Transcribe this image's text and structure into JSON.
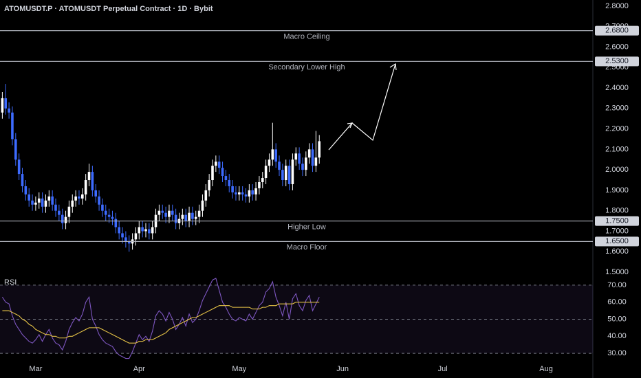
{
  "chart_data": [
    {
      "type": "candlestick",
      "title": "ATOMUSDT.P · ATOMUSDT Perpetual Contract · 1D · Bybit",
      "up_color": "#ffffff",
      "down_color": "#3d6bff",
      "x": [
        -10,
        -9,
        -8,
        -7,
        -6,
        -5,
        -4,
        -3,
        -2,
        -1,
        0,
        1,
        2,
        3,
        4,
        5,
        6,
        7,
        8,
        9,
        10,
        11,
        12,
        13,
        14,
        15,
        16,
        17,
        18,
        19,
        20,
        21,
        22,
        23,
        24,
        25,
        26,
        27,
        28,
        29,
        30,
        31,
        32,
        33,
        34,
        35,
        36,
        37,
        38,
        39,
        40,
        41,
        42,
        43,
        44,
        45,
        46,
        47,
        48,
        49,
        50,
        51,
        52,
        53,
        54,
        55,
        56,
        57,
        58,
        59,
        60,
        61,
        62,
        63,
        64,
        65,
        66,
        67,
        68,
        69,
        70,
        71,
        72,
        73,
        74,
        75,
        76,
        77,
        78,
        79,
        80,
        81,
        82,
        83,
        84,
        85
      ],
      "open": [
        2.28,
        2.35,
        2.3,
        2.28,
        2.15,
        2.05,
        1.98,
        1.92,
        1.88,
        1.85,
        1.83,
        1.84,
        1.86,
        1.82,
        1.85,
        1.87,
        1.83,
        1.8,
        1.78,
        1.74,
        1.77,
        1.82,
        1.85,
        1.87,
        1.86,
        1.88,
        1.95,
        1.99,
        1.9,
        1.87,
        1.83,
        1.8,
        1.78,
        1.77,
        1.76,
        1.72,
        1.69,
        1.67,
        1.65,
        1.64,
        1.66,
        1.69,
        1.72,
        1.7,
        1.71,
        1.69,
        1.72,
        1.78,
        1.8,
        1.79,
        1.77,
        1.8,
        1.78,
        1.74,
        1.76,
        1.78,
        1.75,
        1.79,
        1.76,
        1.77,
        1.8,
        1.85,
        1.9,
        1.95,
        2.02,
        2.04,
        2.01,
        1.97,
        1.95,
        1.92,
        1.89,
        1.88,
        1.89,
        1.88,
        1.87,
        1.9,
        1.88,
        1.91,
        1.94,
        1.96,
        2.02,
        2.05,
        2.1,
        2.04,
        2.0,
        1.95,
        2.02,
        1.93,
        2.05,
        2.08,
        2.03,
        2.0,
        2.06,
        2.1,
        2.02,
        2.06
      ],
      "high": [
        2.38,
        2.42,
        2.33,
        2.31,
        2.18,
        2.08,
        2.01,
        1.95,
        1.91,
        1.88,
        1.87,
        1.89,
        1.89,
        1.88,
        1.9,
        1.9,
        1.86,
        1.83,
        1.81,
        1.8,
        1.85,
        1.88,
        1.9,
        1.9,
        1.91,
        1.98,
        2.03,
        2.02,
        1.93,
        1.9,
        1.86,
        1.83,
        1.81,
        1.8,
        1.79,
        1.75,
        1.72,
        1.7,
        1.68,
        1.69,
        1.72,
        1.75,
        1.75,
        1.74,
        1.74,
        1.75,
        1.81,
        1.83,
        1.83,
        1.82,
        1.83,
        1.83,
        1.81,
        1.79,
        1.81,
        1.81,
        1.82,
        1.82,
        1.8,
        1.83,
        1.88,
        1.93,
        1.98,
        2.05,
        2.07,
        2.07,
        2.04,
        2.0,
        1.98,
        1.95,
        1.92,
        1.92,
        1.92,
        1.91,
        1.93,
        1.93,
        1.94,
        1.97,
        1.99,
        2.05,
        2.08,
        2.23,
        2.13,
        2.07,
        2.03,
        2.05,
        2.05,
        2.08,
        2.11,
        2.11,
        2.06,
        2.09,
        2.13,
        2.13,
        2.19,
        2.17
      ],
      "low": [
        2.25,
        2.27,
        2.25,
        2.12,
        2.02,
        1.95,
        1.89,
        1.85,
        1.82,
        1.8,
        1.8,
        1.81,
        1.79,
        1.79,
        1.82,
        1.8,
        1.77,
        1.75,
        1.71,
        1.71,
        1.74,
        1.79,
        1.82,
        1.83,
        1.83,
        1.85,
        1.92,
        1.87,
        1.84,
        1.8,
        1.77,
        1.75,
        1.74,
        1.73,
        1.69,
        1.66,
        1.64,
        1.62,
        1.6,
        1.61,
        1.63,
        1.66,
        1.67,
        1.67,
        1.66,
        1.66,
        1.69,
        1.75,
        1.76,
        1.74,
        1.74,
        1.75,
        1.71,
        1.71,
        1.73,
        1.72,
        1.72,
        1.73,
        1.73,
        1.74,
        1.77,
        1.82,
        1.87,
        1.92,
        1.99,
        1.98,
        1.94,
        1.92,
        1.89,
        1.86,
        1.85,
        1.85,
        1.85,
        1.84,
        1.84,
        1.85,
        1.85,
        1.88,
        1.91,
        1.93,
        1.99,
        2.02,
        2.01,
        1.97,
        1.92,
        1.92,
        1.9,
        1.9,
        2.02,
        2.0,
        1.97,
        1.97,
        2.03,
        1.99,
        1.99,
        2.03
      ],
      "close": [
        2.35,
        2.3,
        2.28,
        2.15,
        2.05,
        1.98,
        1.92,
        1.88,
        1.85,
        1.83,
        1.84,
        1.86,
        1.82,
        1.85,
        1.87,
        1.83,
        1.8,
        1.78,
        1.74,
        1.77,
        1.82,
        1.85,
        1.87,
        1.86,
        1.88,
        1.95,
        1.99,
        1.9,
        1.87,
        1.83,
        1.8,
        1.78,
        1.77,
        1.76,
        1.72,
        1.69,
        1.67,
        1.65,
        1.64,
        1.66,
        1.69,
        1.72,
        1.7,
        1.71,
        1.69,
        1.72,
        1.78,
        1.8,
        1.79,
        1.77,
        1.8,
        1.78,
        1.74,
        1.76,
        1.78,
        1.75,
        1.79,
        1.76,
        1.77,
        1.8,
        1.85,
        1.9,
        1.95,
        2.02,
        2.04,
        2.01,
        1.97,
        1.95,
        1.92,
        1.89,
        1.88,
        1.89,
        1.88,
        1.87,
        1.9,
        1.88,
        1.91,
        1.94,
        1.96,
        2.02,
        2.05,
        2.1,
        2.04,
        2.0,
        1.95,
        2.02,
        1.93,
        2.05,
        2.08,
        2.03,
        2.0,
        2.06,
        2.1,
        2.02,
        2.06,
        2.14
      ],
      "xlim": [
        -10.7,
        167
      ],
      "ylim": [
        1.5,
        2.83
      ],
      "yticks": [
        {
          "value": 1.5,
          "label": "1.5000"
        },
        {
          "value": 1.6,
          "label": "1.6000"
        },
        {
          "value": 1.7,
          "label": "1.7000"
        },
        {
          "value": 1.8,
          "label": "1.8000"
        },
        {
          "value": 1.9,
          "label": "1.9000"
        },
        {
          "value": 2.0,
          "label": "2.0000"
        },
        {
          "value": 2.1,
          "label": "2.1000"
        },
        {
          "value": 2.2,
          "label": "2.2000"
        },
        {
          "value": 2.3,
          "label": "2.3000"
        },
        {
          "value": 2.4,
          "label": "2.4000"
        },
        {
          "value": 2.5,
          "label": "2.5000"
        },
        {
          "value": 2.6,
          "label": "2.6000"
        },
        {
          "value": 2.7,
          "label": "2.7000"
        },
        {
          "value": 2.8,
          "label": "2.8000"
        }
      ],
      "levels": [
        {
          "value": 2.68,
          "label": "2.6800",
          "name": "Macro Ceiling"
        },
        {
          "value": 2.53,
          "label": "2.5300",
          "name": "Secondary Lower High"
        },
        {
          "value": 1.75,
          "label": "1.7500",
          "name": "Higher Low"
        },
        {
          "value": 1.65,
          "label": "1.6500",
          "name": "Macro Floor"
        }
      ]
    },
    {
      "type": "line",
      "title": "RSI",
      "x": [
        -10,
        -9,
        -8,
        -7,
        -6,
        -5,
        -4,
        -3,
        -2,
        -1,
        0,
        1,
        2,
        3,
        4,
        5,
        6,
        7,
        8,
        9,
        10,
        11,
        12,
        13,
        14,
        15,
        16,
        17,
        18,
        19,
        20,
        21,
        22,
        23,
        24,
        25,
        26,
        27,
        28,
        29,
        30,
        31,
        32,
        33,
        34,
        35,
        36,
        37,
        38,
        39,
        40,
        41,
        42,
        43,
        44,
        45,
        46,
        47,
        48,
        49,
        50,
        51,
        52,
        53,
        54,
        55,
        56,
        57,
        58,
        59,
        60,
        61,
        62,
        63,
        64,
        65,
        66,
        67,
        68,
        69,
        70,
        71,
        72,
        73,
        74,
        75,
        76,
        77,
        78,
        79,
        80,
        81,
        82,
        83,
        84,
        85
      ],
      "series": [
        {
          "color": "#7e57c2",
          "values": [
            63,
            60,
            59,
            52,
            47,
            44,
            41,
            39,
            37,
            36,
            38,
            41,
            37,
            41,
            44,
            39,
            36,
            35,
            32,
            37,
            44,
            48,
            51,
            49,
            53,
            60,
            63,
            50,
            46,
            41,
            38,
            36,
            35,
            34,
            31,
            29,
            28,
            27,
            27,
            31,
            36,
            41,
            38,
            40,
            37,
            43,
            52,
            55,
            53,
            49,
            54,
            50,
            44,
            47,
            51,
            46,
            53,
            48,
            50,
            55,
            61,
            65,
            69,
            73,
            74,
            67,
            60,
            57,
            53,
            50,
            49,
            51,
            50,
            49,
            53,
            50,
            54,
            58,
            60,
            66,
            68,
            72,
            63,
            58,
            52,
            60,
            50,
            62,
            65,
            58,
            55,
            61,
            64,
            55,
            59,
            63
          ]
        },
        {
          "color": "#e8c547",
          "values": [
            55,
            55,
            55,
            54,
            53,
            52,
            50,
            49,
            47,
            46,
            44,
            43,
            42,
            41,
            41,
            40,
            40,
            39,
            39,
            39,
            40,
            40,
            41,
            42,
            43,
            44,
            45,
            45,
            45,
            45,
            44,
            43,
            42,
            41,
            40,
            39,
            38,
            37,
            36,
            36,
            36,
            37,
            37,
            38,
            38,
            38,
            39,
            40,
            41,
            42,
            44,
            45,
            46,
            47,
            48,
            49,
            50,
            51,
            51,
            52,
            53,
            54,
            55,
            56,
            57,
            58,
            58,
            58,
            58,
            57,
            57,
            57,
            57,
            57,
            57,
            56,
            56,
            56,
            57,
            57,
            58,
            58,
            58,
            59,
            59,
            59,
            59,
            59,
            60,
            60,
            60,
            60,
            60,
            60,
            60,
            60
          ]
        }
      ],
      "xlim": [
        -10.7,
        167
      ],
      "xticks": [
        {
          "value": 0,
          "label": "Mar"
        },
        {
          "value": 31,
          "label": "Apr"
        },
        {
          "value": 61,
          "label": "May"
        },
        {
          "value": 92,
          "label": "Jun"
        },
        {
          "value": 122,
          "label": "Jul"
        },
        {
          "value": 153,
          "label": "Aug"
        }
      ],
      "ylim": [
        26,
        76
      ],
      "yticks": [
        {
          "value": 30,
          "label": "30.00"
        },
        {
          "value": 40,
          "label": "40.00"
        },
        {
          "value": 50,
          "label": "50.00"
        },
        {
          "value": 60,
          "label": "60.00"
        },
        {
          "value": 70,
          "label": "70.00"
        }
      ],
      "hlines": [
        70,
        50,
        30
      ]
    }
  ]
}
